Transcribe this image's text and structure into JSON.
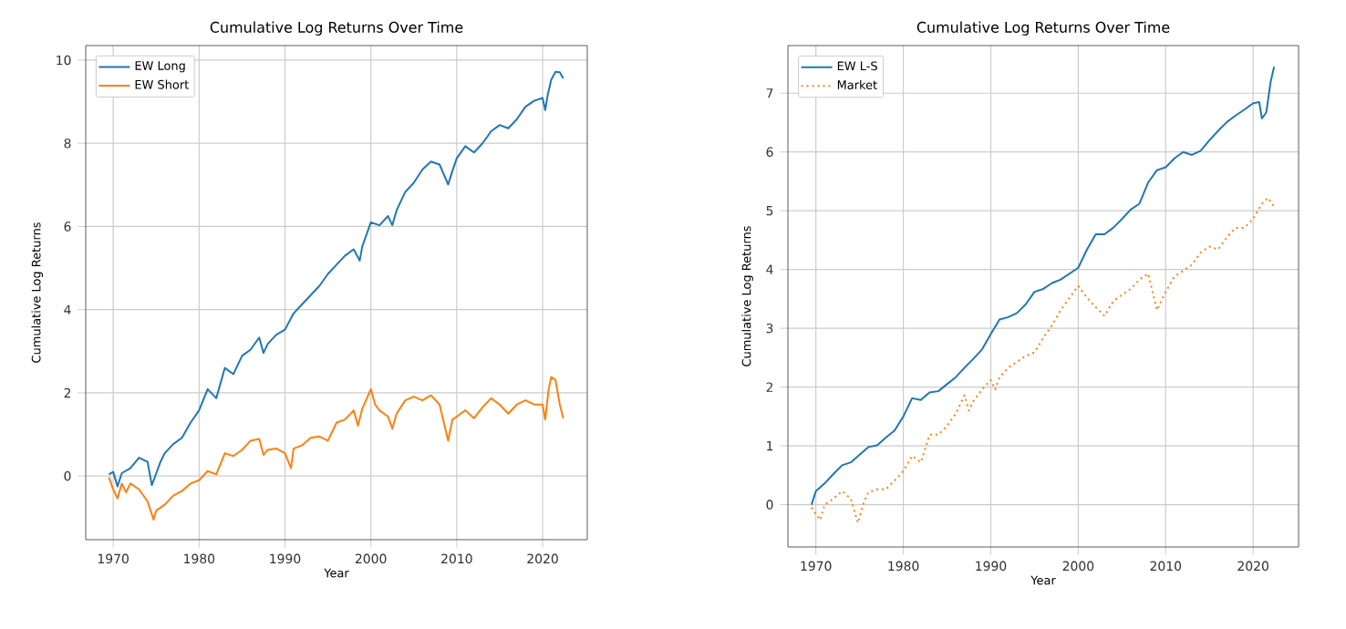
{
  "chart_data": [
    {
      "type": "line",
      "title": "Cumulative Log Returns Over Time",
      "xlabel": "Year",
      "ylabel": "Cumulative Log Returns",
      "xlim": [
        1966.8,
        2025.2
      ],
      "ylim": [
        -1.53,
        10.35
      ],
      "xticks": [
        1970,
        1980,
        1990,
        2000,
        2010,
        2020
      ],
      "yticks": [
        0,
        2,
        4,
        6,
        8,
        10
      ],
      "grid": true,
      "legend": "top left",
      "series": [
        {
          "name": "EW Long",
          "color": "#1f77b4",
          "line_style": "solid",
          "x": [
            1969.5,
            1970,
            1970.5,
            1971,
            1972,
            1973,
            1974,
            1974.5,
            1975.5,
            1976,
            1977,
            1978,
            1979,
            1980,
            1981,
            1982,
            1983,
            1984,
            1985,
            1986,
            1987,
            1987.5,
            1988,
            1989,
            1990,
            1991,
            1992,
            1993,
            1994,
            1995,
            1996,
            1997,
            1998,
            1998.7,
            1999,
            2000,
            2001,
            2002,
            2002.5,
            2003,
            2004,
            2005,
            2006,
            2007,
            2008,
            2009,
            2009.5,
            2010,
            2011,
            2012,
            2013,
            2014,
            2015,
            2016,
            2017,
            2018,
            2019,
            2020,
            2020.3,
            2020.6,
            2021,
            2021.5,
            2022,
            2022.4
          ],
          "values": [
            0.04,
            0.1,
            -0.25,
            0.07,
            0.19,
            0.44,
            0.34,
            -0.22,
            0.34,
            0.55,
            0.77,
            0.92,
            1.28,
            1.58,
            2.09,
            1.87,
            2.6,
            2.45,
            2.89,
            3.04,
            3.33,
            2.96,
            3.18,
            3.4,
            3.52,
            3.91,
            4.13,
            4.35,
            4.57,
            4.86,
            5.08,
            5.3,
            5.45,
            5.18,
            5.52,
            6.1,
            6.03,
            6.25,
            6.03,
            6.39,
            6.83,
            7.05,
            7.37,
            7.56,
            7.49,
            7.01,
            7.34,
            7.64,
            7.93,
            7.78,
            8.0,
            8.29,
            8.44,
            8.36,
            8.58,
            8.88,
            9.02,
            9.09,
            8.8,
            9.17,
            9.53,
            9.72,
            9.71,
            9.56
          ]
        },
        {
          "name": "EW Short",
          "color": "#ff7f0e",
          "line_style": "solid",
          "x": [
            1969.5,
            1970,
            1970.5,
            1971,
            1971.5,
            1972,
            1973,
            1974,
            1974.7,
            1975,
            1976,
            1977,
            1978,
            1979,
            1980,
            1981,
            1982,
            1983,
            1984,
            1985,
            1986,
            1987,
            1987.5,
            1988,
            1989,
            1990,
            1990.7,
            1991,
            1992,
            1993,
            1994,
            1995,
            1996,
            1997,
            1998,
            1998.5,
            1999,
            2000,
            2000.5,
            2001,
            2002,
            2002.5,
            2003,
            2004,
            2005,
            2006,
            2007,
            2008,
            2009,
            2009.5,
            2010,
            2011,
            2012,
            2013,
            2014,
            2015,
            2016,
            2017,
            2018,
            2019,
            2020,
            2020.3,
            2020.7,
            2021,
            2021.5,
            2022,
            2022.4
          ],
          "values": [
            -0.03,
            -0.32,
            -0.54,
            -0.18,
            -0.39,
            -0.18,
            -0.32,
            -0.61,
            -1.05,
            -0.83,
            -0.69,
            -0.47,
            -0.36,
            -0.18,
            -0.1,
            0.12,
            0.04,
            0.55,
            0.48,
            0.63,
            0.85,
            0.89,
            0.51,
            0.63,
            0.66,
            0.55,
            0.19,
            0.66,
            0.74,
            0.92,
            0.95,
            0.85,
            1.28,
            1.36,
            1.58,
            1.21,
            1.62,
            2.09,
            1.72,
            1.58,
            1.43,
            1.14,
            1.5,
            1.82,
            1.91,
            1.82,
            1.94,
            1.72,
            0.85,
            1.36,
            1.43,
            1.58,
            1.39,
            1.65,
            1.87,
            1.72,
            1.5,
            1.72,
            1.82,
            1.72,
            1.72,
            1.36,
            2.09,
            2.38,
            2.31,
            1.72,
            1.39
          ]
        }
      ]
    },
    {
      "type": "line",
      "title": "Cumulative Log Returns Over Time",
      "xlabel": "Year",
      "ylabel": "Cumulative Log Returns",
      "xlim": [
        1966.8,
        2025.2
      ],
      "ylim": [
        -0.72,
        7.81
      ],
      "xticks": [
        1970,
        1980,
        1990,
        2000,
        2010,
        2020
      ],
      "yticks": [
        0,
        1,
        2,
        3,
        4,
        5,
        6,
        7
      ],
      "grid": true,
      "legend": "top left",
      "series": [
        {
          "name": "EW L-S",
          "color": "#1f77b4",
          "line_style": "solid",
          "x": [
            1969.5,
            1970,
            1971,
            1972,
            1973,
            1974,
            1975,
            1976,
            1977,
            1978,
            1979,
            1980,
            1981,
            1982,
            1983,
            1984,
            1985,
            1986,
            1987,
            1988,
            1989,
            1990,
            1991,
            1992,
            1993,
            1994,
            1995,
            1996,
            1997,
            1998,
            1999,
            2000,
            2001,
            2002,
            2003,
            2004,
            2005,
            2006,
            2007,
            2008,
            2009,
            2010,
            2011,
            2012,
            2013,
            2014,
            2015,
            2016,
            2017,
            2018,
            2019,
            2020,
            2020.7,
            2021,
            2021.5,
            2022,
            2022.4
          ],
          "values": [
            0,
            0.23,
            0.36,
            0.52,
            0.67,
            0.72,
            0.85,
            0.98,
            1.01,
            1.14,
            1.26,
            1.5,
            1.81,
            1.78,
            1.91,
            1.93,
            2.05,
            2.17,
            2.33,
            2.48,
            2.64,
            2.9,
            3.15,
            3.19,
            3.26,
            3.41,
            3.62,
            3.67,
            3.77,
            3.83,
            3.93,
            4.03,
            4.34,
            4.6,
            4.6,
            4.71,
            4.86,
            5.02,
            5.12,
            5.48,
            5.69,
            5.74,
            5.89,
            6.0,
            5.95,
            6.02,
            6.2,
            6.36,
            6.51,
            6.62,
            6.72,
            6.83,
            6.85,
            6.57,
            6.67,
            7.19,
            7.45
          ]
        },
        {
          "name": "Market",
          "color": "#ff7f0e",
          "line_style": "dotted",
          "x": [
            1969.5,
            1970,
            1970.5,
            1971,
            1972,
            1973,
            1974,
            1974.8,
            1975.5,
            1976,
            1977,
            1978,
            1979,
            1980,
            1981,
            1982,
            1983,
            1984,
            1985,
            1986,
            1987,
            1987.5,
            1988,
            1989,
            1990,
            1990.5,
            1991,
            1992,
            1993,
            1994,
            1995,
            1996,
            1997,
            1998,
            1999,
            2000,
            2001,
            2002,
            2003,
            2004,
            2005,
            2006,
            2007,
            2008,
            2009,
            2010,
            2011,
            2012,
            2013,
            2014,
            2015,
            2016,
            2017,
            2018,
            2019,
            2020,
            2021,
            2021.7,
            2022.4
          ],
          "values": [
            -0.05,
            -0.16,
            -0.26,
            0,
            0.1,
            0.23,
            0.1,
            -0.31,
            0.05,
            0.21,
            0.26,
            0.26,
            0.41,
            0.57,
            0.83,
            0.72,
            1.19,
            1.19,
            1.34,
            1.55,
            1.86,
            1.6,
            1.76,
            1.96,
            2.12,
            1.96,
            2.17,
            2.33,
            2.43,
            2.53,
            2.59,
            2.84,
            3.05,
            3.31,
            3.52,
            3.72,
            3.52,
            3.36,
            3.21,
            3.46,
            3.57,
            3.67,
            3.83,
            3.93,
            3.31,
            3.62,
            3.88,
            3.98,
            4.08,
            4.29,
            4.39,
            4.34,
            4.55,
            4.71,
            4.71,
            4.86,
            5.12,
            5.22,
            5.07
          ]
        }
      ]
    }
  ]
}
